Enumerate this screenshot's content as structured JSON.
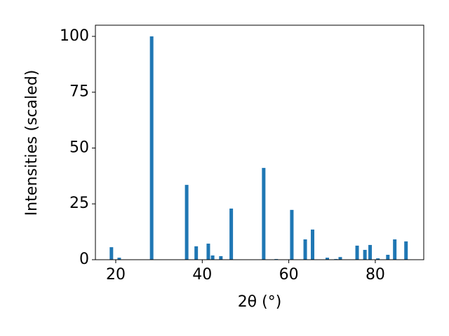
{
  "chart_data": {
    "type": "bar",
    "color": "#1f77b4",
    "x_label": "2θ (°)",
    "y_label": "Intensities (scaled)",
    "x": [
      19.0,
      20.8,
      28.3,
      36.4,
      38.6,
      41.4,
      42.4,
      44.3,
      46.7,
      54.2,
      57.1,
      60.7,
      63.8,
      65.5,
      68.9,
      70.9,
      71.9,
      75.8,
      77.6,
      78.8,
      80.6,
      82.9,
      84.5,
      87.1
    ],
    "values": [
      5.6,
      0.9,
      100,
      33.5,
      6.0,
      7.2,
      1.9,
      1.6,
      22.9,
      41.1,
      0.3,
      22.3,
      9.1,
      13.5,
      0.9,
      0.3,
      1.2,
      6.3,
      4.4,
      6.6,
      0.6,
      2.2,
      9.1,
      8.2
    ],
    "xlim": [
      15.3,
      91.2
    ],
    "ylim": [
      0,
      105
    ],
    "xticks": [
      20,
      40,
      60,
      80
    ],
    "yticks": [
      0,
      25,
      50,
      75,
      100
    ]
  }
}
